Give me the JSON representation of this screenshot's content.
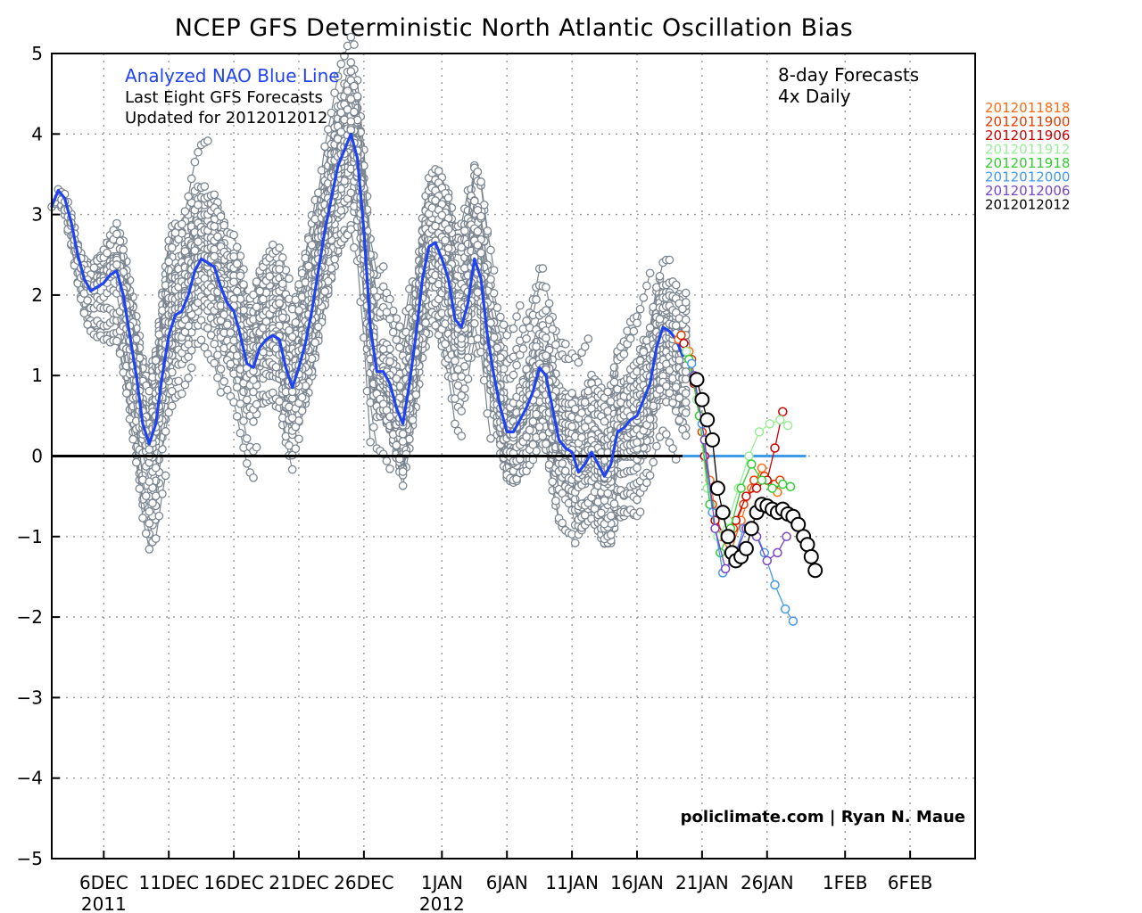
{
  "chart_data": {
    "type": "line",
    "title": "NCEP GFS Deterministic North Atlantic Oscillation Bias",
    "ylim": [
      -5,
      5
    ],
    "yticks": [
      "5",
      "4",
      "3",
      "2",
      "1",
      "0",
      "-1",
      "-2",
      "-3",
      "-4",
      "-5"
    ],
    "xlim_day": [
      0,
      71
    ],
    "xticks": [
      {
        "label": "6DEC",
        "sub": "2011",
        "day": 4
      },
      {
        "label": "11DEC",
        "sub": "",
        "day": 9
      },
      {
        "label": "16DEC",
        "sub": "",
        "day": 14
      },
      {
        "label": "21DEC",
        "sub": "",
        "day": 19
      },
      {
        "label": "26DEC",
        "sub": "",
        "day": 24
      },
      {
        "label": "1JAN",
        "sub": "2012",
        "day": 30
      },
      {
        "label": "6JAN",
        "sub": "",
        "day": 35
      },
      {
        "label": "11JAN",
        "sub": "",
        "day": 40
      },
      {
        "label": "16JAN",
        "sub": "",
        "day": 45
      },
      {
        "label": "21JAN",
        "sub": "",
        "day": 50
      },
      {
        "label": "26JAN",
        "sub": "",
        "day": 55
      },
      {
        "label": "1FEB",
        "sub": "",
        "day": 61
      },
      {
        "label": "6FEB",
        "sub": "",
        "day": 66
      }
    ],
    "analyzed_nao": {
      "name": "Analyzed NAO",
      "color": "#2244ee",
      "points": [
        [
          0,
          3.1
        ],
        [
          0.5,
          3.3
        ],
        [
          1,
          3.2
        ],
        [
          1.5,
          2.9
        ],
        [
          2,
          2.5
        ],
        [
          2.5,
          2.2
        ],
        [
          3,
          2.05
        ],
        [
          3.5,
          2.1
        ],
        [
          4,
          2.15
        ],
        [
          4.5,
          2.25
        ],
        [
          5,
          2.3
        ],
        [
          5.5,
          2.0
        ],
        [
          6,
          1.5
        ],
        [
          6.5,
          1.0
        ],
        [
          7,
          0.4
        ],
        [
          7.5,
          0.15
        ],
        [
          8,
          0.4
        ],
        [
          8.5,
          1.0
        ],
        [
          9,
          1.5
        ],
        [
          9.5,
          1.75
        ],
        [
          10,
          1.8
        ],
        [
          10.5,
          2.0
        ],
        [
          11,
          2.3
        ],
        [
          11.5,
          2.45
        ],
        [
          12,
          2.4
        ],
        [
          12.5,
          2.35
        ],
        [
          13,
          2.1
        ],
        [
          13.5,
          1.9
        ],
        [
          14,
          1.8
        ],
        [
          14.5,
          1.5
        ],
        [
          15,
          1.15
        ],
        [
          15.5,
          1.1
        ],
        [
          16,
          1.35
        ],
        [
          16.5,
          1.45
        ],
        [
          17,
          1.5
        ],
        [
          17.5,
          1.45
        ],
        [
          18,
          1.1
        ],
        [
          18.5,
          0.85
        ],
        [
          19,
          1.1
        ],
        [
          19.5,
          1.4
        ],
        [
          20,
          1.8
        ],
        [
          20.5,
          2.3
        ],
        [
          21,
          2.8
        ],
        [
          21.5,
          3.2
        ],
        [
          22,
          3.6
        ],
        [
          22.5,
          3.8
        ],
        [
          23,
          4.0
        ],
        [
          23.5,
          3.7
        ],
        [
          24,
          2.8
        ],
        [
          24.5,
          1.6
        ],
        [
          25,
          1.05
        ],
        [
          25.5,
          1.05
        ],
        [
          26,
          0.9
        ],
        [
          26.5,
          0.6
        ],
        [
          27,
          0.4
        ],
        [
          27.5,
          0.9
        ],
        [
          28,
          1.5
        ],
        [
          28.5,
          2.2
        ],
        [
          29,
          2.6
        ],
        [
          29.5,
          2.65
        ],
        [
          30,
          2.45
        ],
        [
          30.5,
          2.2
        ],
        [
          31,
          1.7
        ],
        [
          31.5,
          1.6
        ],
        [
          32,
          1.9
        ],
        [
          32.5,
          2.45
        ],
        [
          33,
          2.2
        ],
        [
          33.5,
          1.5
        ],
        [
          34,
          1.0
        ],
        [
          34.5,
          0.6
        ],
        [
          35,
          0.3
        ],
        [
          35.5,
          0.3
        ],
        [
          36,
          0.45
        ],
        [
          36.5,
          0.6
        ],
        [
          37,
          0.8
        ],
        [
          37.5,
          1.1
        ],
        [
          38,
          1.0
        ],
        [
          38.5,
          0.6
        ],
        [
          39,
          0.2
        ],
        [
          39.5,
          0.1
        ],
        [
          40,
          0.05
        ],
        [
          40.5,
          -0.2
        ],
        [
          41,
          -0.1
        ],
        [
          41.5,
          0.05
        ],
        [
          42,
          -0.1
        ],
        [
          42.5,
          -0.25
        ],
        [
          43,
          -0.1
        ],
        [
          43.5,
          0.3
        ],
        [
          44,
          0.35
        ],
        [
          44.5,
          0.45
        ],
        [
          45,
          0.5
        ],
        [
          45.5,
          0.7
        ],
        [
          46,
          0.9
        ],
        [
          46.5,
          1.35
        ],
        [
          47,
          1.6
        ],
        [
          47.5,
          1.55
        ],
        [
          48,
          1.45
        ],
        [
          48.5,
          1.25
        ]
      ]
    },
    "forecast_runs": [
      {
        "name": "2012011818",
        "color": "#ff6a13",
        "points": [
          [
            48.2,
            1.45
          ],
          [
            49,
            1.3
          ],
          [
            49.8,
            0.5
          ],
          [
            50.6,
            -0.3
          ],
          [
            51.4,
            -1.0
          ],
          [
            52.2,
            -1.2
          ],
          [
            53,
            -0.8
          ],
          [
            53.8,
            -0.4
          ],
          [
            54.6,
            -0.15
          ],
          [
            55.4,
            -0.35
          ],
          [
            55.8,
            -0.45
          ]
        ]
      },
      {
        "name": "2012011900",
        "color": "#e63900",
        "points": [
          [
            48.4,
            1.5
          ],
          [
            49.2,
            1.2
          ],
          [
            50,
            0.3
          ],
          [
            50.8,
            -0.6
          ],
          [
            51.6,
            -1.0
          ],
          [
            52.4,
            -0.9
          ],
          [
            53.2,
            -0.6
          ],
          [
            54,
            -0.3
          ],
          [
            54.8,
            -0.25
          ],
          [
            55.6,
            -0.35
          ],
          [
            56,
            -0.3
          ]
        ]
      },
      {
        "name": "2012011906",
        "color": "#cc0000",
        "points": [
          [
            48.6,
            1.4
          ],
          [
            49.4,
            0.9
          ],
          [
            50.2,
            0.0
          ],
          [
            51,
            -0.8
          ],
          [
            51.8,
            -1.0
          ],
          [
            52.6,
            -0.8
          ],
          [
            53.4,
            -0.5
          ],
          [
            54.2,
            -0.4
          ],
          [
            55,
            -0.3
          ],
          [
            55.6,
            0.1
          ],
          [
            56.2,
            0.55
          ]
        ]
      },
      {
        "name": "2012011912",
        "color": "#99ee99",
        "points": [
          [
            48.8,
            1.3
          ],
          [
            49.6,
            0.7
          ],
          [
            50.4,
            -0.4
          ],
          [
            51.2,
            -1.0
          ],
          [
            52,
            -0.8
          ],
          [
            52.8,
            -0.4
          ],
          [
            53.6,
            0.0
          ],
          [
            54.4,
            0.3
          ],
          [
            55.2,
            0.4
          ],
          [
            56,
            0.45
          ],
          [
            56.6,
            0.38
          ]
        ]
      },
      {
        "name": "2012011918",
        "color": "#33cc33",
        "points": [
          [
            49,
            1.2
          ],
          [
            49.8,
            0.5
          ],
          [
            50.6,
            -0.6
          ],
          [
            51.4,
            -1.2
          ],
          [
            52.2,
            -0.9
          ],
          [
            53,
            -0.4
          ],
          [
            53.8,
            -0.1
          ],
          [
            54.6,
            -0.3
          ],
          [
            55.4,
            -0.4
          ],
          [
            56.2,
            -0.35
          ],
          [
            56.8,
            -0.38
          ]
        ]
      },
      {
        "name": "2012012000",
        "color": "#4499ee",
        "points": [
          [
            49.2,
            1.15
          ],
          [
            50,
            0.4
          ],
          [
            50.8,
            -0.7
          ],
          [
            51.6,
            -1.45
          ],
          [
            52.4,
            -1.3
          ],
          [
            53.2,
            -0.9
          ],
          [
            54,
            -0.9
          ],
          [
            54.8,
            -1.2
          ],
          [
            55.6,
            -1.6
          ],
          [
            56.4,
            -1.9
          ],
          [
            57,
            -2.05
          ]
        ]
      },
      {
        "name": "2012012006",
        "color": "#7744cc",
        "points": [
          [
            49.4,
            1.0
          ],
          [
            50.2,
            0.2
          ],
          [
            51,
            -0.9
          ],
          [
            51.8,
            -1.4
          ],
          [
            52.6,
            -1.2
          ],
          [
            53.4,
            -0.9
          ],
          [
            54.2,
            -1.0
          ],
          [
            55,
            -1.3
          ],
          [
            55.8,
            -1.2
          ],
          [
            56.5,
            -1.0
          ]
        ]
      },
      {
        "name": "2012012012",
        "color": "#000000",
        "points": [
          [
            49.6,
            0.95
          ],
          [
            50,
            0.7
          ],
          [
            50.4,
            0.45
          ],
          [
            50.8,
            0.2
          ],
          [
            51.2,
            -0.4
          ],
          [
            51.6,
            -0.7
          ],
          [
            52,
            -1.0
          ],
          [
            52.3,
            -1.2
          ],
          [
            52.6,
            -1.3
          ],
          [
            53,
            -1.25
          ],
          [
            53.4,
            -1.15
          ],
          [
            53.8,
            -0.9
          ],
          [
            54.2,
            -0.7
          ],
          [
            54.6,
            -0.6
          ],
          [
            55,
            -0.62
          ],
          [
            55.4,
            -0.66
          ],
          [
            55.8,
            -0.7
          ],
          [
            56.2,
            -0.66
          ],
          [
            56.6,
            -0.72
          ],
          [
            57,
            -0.75
          ],
          [
            57.4,
            -0.85
          ],
          [
            57.8,
            -1.0
          ],
          [
            58.1,
            -1.1
          ],
          [
            58.4,
            -1.25
          ],
          [
            58.7,
            -1.42
          ]
        ]
      }
    ],
    "zero_line_end_day": 58,
    "annotations": {
      "analyzed_label": "Analyzed NAO Blue Line",
      "last_eight": "Last Eight GFS Forecasts",
      "updated": "Updated for 2012012012",
      "forecast_length": "8-day Forecasts",
      "frequency": "4x Daily",
      "credit": "policlimate.com | Ryan N. Maue"
    },
    "legend_placement": "right-outside-top"
  },
  "colors": {
    "analyzed_label": "#2244ee",
    "history_marker": "#7b8590",
    "zero_line": "#000000",
    "zero_forecast_line": "#3f9be8"
  }
}
